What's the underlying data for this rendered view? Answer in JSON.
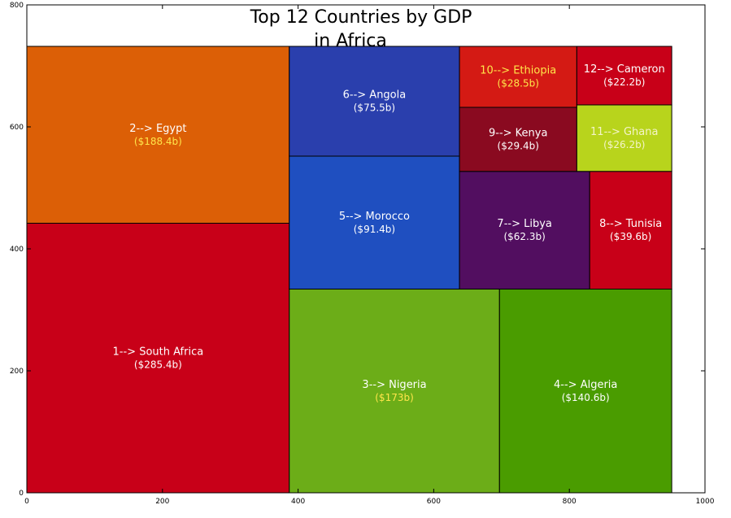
{
  "chart_data": {
    "type": "treemap",
    "title_lines": [
      "Top 12 Countries by GDP",
      "in Africa"
    ],
    "xlim": [
      0,
      1000
    ],
    "ylim": [
      0,
      800
    ],
    "x_ticks": [
      0,
      200,
      400,
      600,
      800,
      1000
    ],
    "y_ticks": [
      0,
      200,
      400,
      600,
      800
    ],
    "cells": [
      {
        "label": "1--> South Africa",
        "value": "($285.4b)",
        "x0": 0,
        "x1": 387,
        "y0": 0,
        "y1": 442,
        "color": "#c80018",
        "text_color": "#ffffff",
        "value_color": "#ffffff"
      },
      {
        "label": "2--> Egypt",
        "value": "($188.4b)",
        "x0": 0,
        "x1": 387,
        "y0": 442,
        "y1": 732,
        "color": "#dc5f06",
        "text_color": "#ffffff",
        "value_color": "#ffe64a"
      },
      {
        "label": "3--> Nigeria",
        "value": "($173b)",
        "x0": 387,
        "x1": 697,
        "y0": 0,
        "y1": 334,
        "color": "#6cad18",
        "text_color": "#ffffff",
        "value_color": "#ffe64a"
      },
      {
        "label": "4--> Algeria",
        "value": "($140.6b)",
        "x0": 697,
        "x1": 951,
        "y0": 0,
        "y1": 334,
        "color": "#4a9c00",
        "text_color": "#ffffff",
        "value_color": "#ffffff"
      },
      {
        "label": "5--> Morocco",
        "value": "($91.4b)",
        "x0": 387,
        "x1": 638,
        "y0": 334,
        "y1": 552,
        "color": "#1f4fc0",
        "text_color": "#ffffff",
        "value_color": "#ffffff"
      },
      {
        "label": "6--> Angola",
        "value": "($75.5b)",
        "x0": 387,
        "x1": 638,
        "y0": 552,
        "y1": 732,
        "color": "#2a3fad",
        "text_color": "#ffffff",
        "value_color": "#ffffff"
      },
      {
        "label": "7--> Libya",
        "value": "($62.3b)",
        "x0": 638,
        "x1": 830,
        "y0": 334,
        "y1": 527,
        "color": "#520e60",
        "text_color": "#ffffff",
        "value_color": "#ffffff"
      },
      {
        "label": "8--> Tunisia",
        "value": "($39.6b)",
        "x0": 830,
        "x1": 951,
        "y0": 334,
        "y1": 527,
        "color": "#c80018",
        "text_color": "#ffffff",
        "value_color": "#ffffff"
      },
      {
        "label": "9--> Kenya",
        "value": "($29.4b)",
        "x0": 638,
        "x1": 811,
        "y0": 527,
        "y1": 632,
        "color": "#8a0a20",
        "text_color": "#ffffff",
        "value_color": "#ffffff"
      },
      {
        "label": "10--> Ethiopia",
        "value": "($28.5b)",
        "x0": 638,
        "x1": 811,
        "y0": 632,
        "y1": 732,
        "color": "#d41a14",
        "text_color": "#ffe64a",
        "value_color": "#ffe64a"
      },
      {
        "label": "11--> Ghana",
        "value": "($26.2b)",
        "x0": 811,
        "x1": 951,
        "y0": 527,
        "y1": 636,
        "color": "#b8d41c",
        "text_color": "#f4f4c8",
        "value_color": "#f4f4c8"
      },
      {
        "label": "12--> Cameron",
        "value": "($22.2b)",
        "x0": 811,
        "x1": 951,
        "y0": 636,
        "y1": 732,
        "color": "#c80018",
        "text_color": "#ffffff",
        "value_color": "#ffffff"
      }
    ]
  }
}
